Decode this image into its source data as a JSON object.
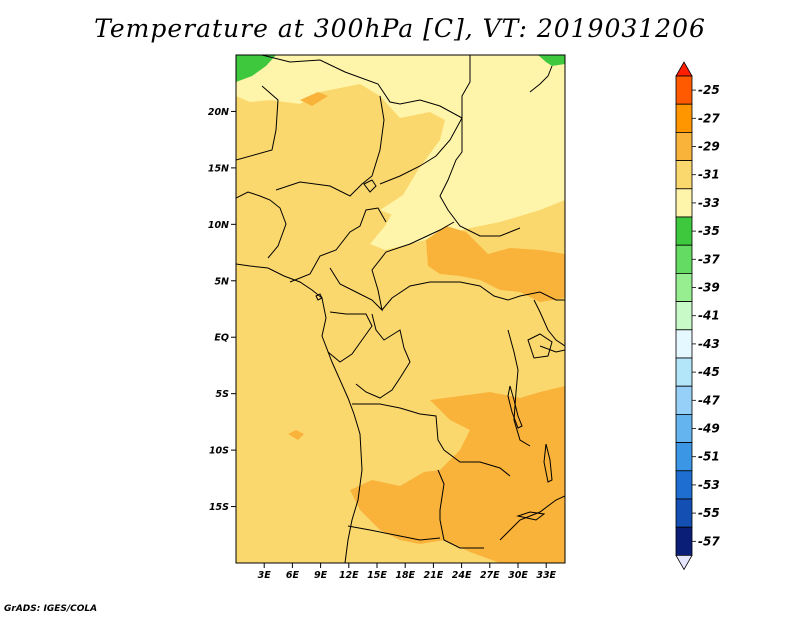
{
  "title": "Temperature at 300hPa [C], VT: 2019031206",
  "credit": "GrADS: IGES/COLA",
  "map": {
    "lon_range": [
      0,
      35
    ],
    "lat_range": [
      -20,
      25
    ],
    "lat_ticks": [
      {
        "value": 20,
        "label": "20N"
      },
      {
        "value": 15,
        "label": "15N"
      },
      {
        "value": 10,
        "label": "10N"
      },
      {
        "value": 5,
        "label": "5N"
      },
      {
        "value": 0,
        "label": "EQ"
      },
      {
        "value": -5,
        "label": "5S"
      },
      {
        "value": -10,
        "label": "10S"
      },
      {
        "value": -15,
        "label": "15S"
      }
    ],
    "lon_ticks": [
      {
        "value": 3,
        "label": "3E"
      },
      {
        "value": 6,
        "label": "6E"
      },
      {
        "value": 9,
        "label": "9E"
      },
      {
        "value": 12,
        "label": "12E"
      },
      {
        "value": 15,
        "label": "15E"
      },
      {
        "value": 18,
        "label": "18E"
      },
      {
        "value": 21,
        "label": "21E"
      },
      {
        "value": 24,
        "label": "24E"
      },
      {
        "value": 27,
        "label": "27E"
      },
      {
        "value": 30,
        "label": "30E"
      },
      {
        "value": 33,
        "label": "33E"
      }
    ]
  },
  "colorbar": {
    "levels": [
      {
        "label": "-25",
        "color": "#ff5a00"
      },
      {
        "label": "-27",
        "color": "#ff9600"
      },
      {
        "label": "-29",
        "color": "#f9b23a"
      },
      {
        "label": "-31",
        "color": "#fbd86e"
      },
      {
        "label": "-33",
        "color": "#fff5aa"
      },
      {
        "label": "-35",
        "color": "#3ec83e"
      },
      {
        "label": "-37",
        "color": "#64dc64"
      },
      {
        "label": "-39",
        "color": "#96ee90"
      },
      {
        "label": "-41",
        "color": "#c8fac8"
      },
      {
        "label": "-43",
        "color": "#e6f8ff"
      },
      {
        "label": "-45",
        "color": "#b4e6fa"
      },
      {
        "label": "-47",
        "color": "#96d0f8"
      },
      {
        "label": "-49",
        "color": "#64b4f0"
      },
      {
        "label": "-51",
        "color": "#3c96e6"
      },
      {
        "label": "-53",
        "color": "#1e6ed2"
      },
      {
        "label": "-55",
        "color": "#1450b4"
      },
      {
        "label": "-57",
        "color": "#0a1e78"
      }
    ],
    "top_arrow_color": "#ff1e00",
    "bottom_arrow_color": "#e6e6ff"
  },
  "colors": {
    "base_field": "#fbd86e",
    "warm_field": "#f9b23a",
    "cool_field": "#fff5aa",
    "green_field": "#3ec83e",
    "border": "#000000"
  }
}
